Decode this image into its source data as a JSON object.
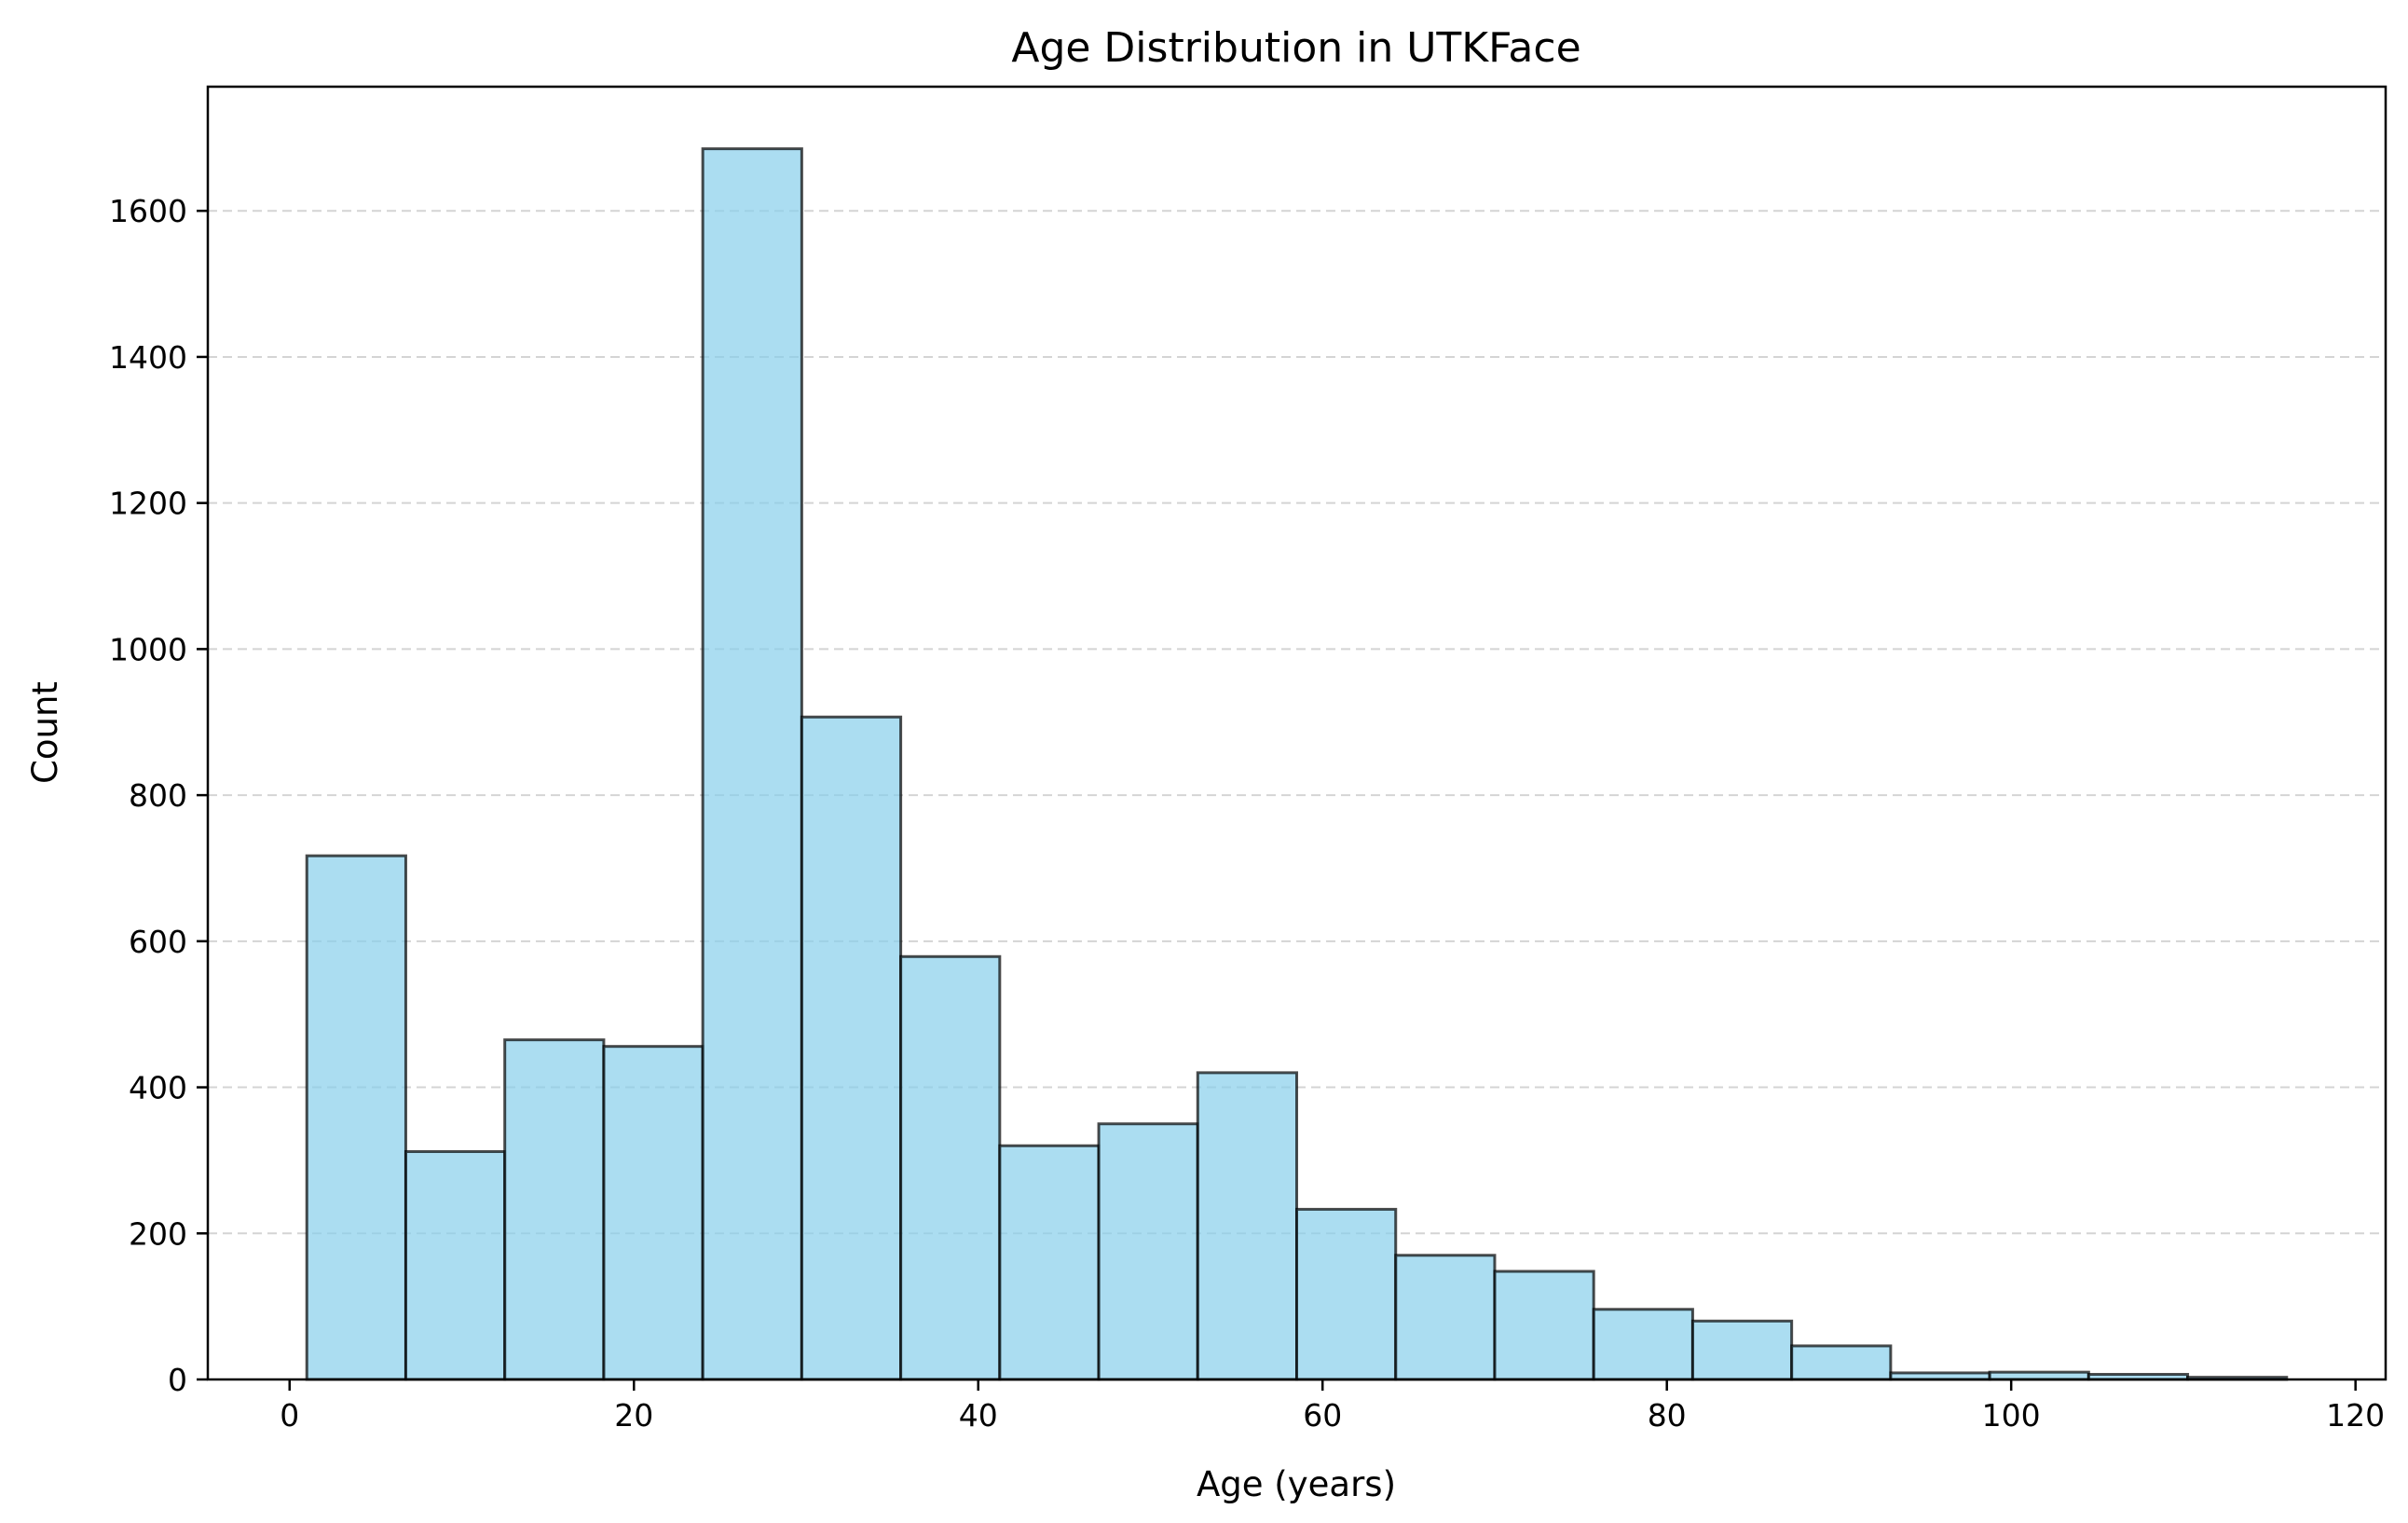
{
  "chart_data": {
    "type": "bar",
    "title": "Age Distribution in UTKFace",
    "xlabel": "Age (years)",
    "ylabel": "Count",
    "xlim": [
      -4.75,
      121.75
    ],
    "ylim": [
      0,
      1770
    ],
    "xticks": [
      0,
      20,
      40,
      60,
      80,
      100,
      120
    ],
    "yticks": [
      0,
      200,
      400,
      600,
      800,
      1000,
      1200,
      1400,
      1600
    ],
    "grid": "y-axis dashed",
    "legend": "none",
    "bin_edges": [
      1,
      6.75,
      12.5,
      18.25,
      24,
      29.75,
      35.5,
      41.25,
      47,
      52.75,
      58.5,
      64.25,
      70,
      75.75,
      81.5,
      87.25,
      93,
      98.75,
      104.5,
      110.25,
      116
    ],
    "values": [
      717,
      312,
      465,
      456,
      1685,
      907,
      579,
      320,
      350,
      420,
      233,
      170,
      148,
      96,
      80,
      46,
      9,
      10,
      7,
      3
    ],
    "colors": {
      "bar_fill": "#87ceeb",
      "bar_fill_opacity": 0.7,
      "bar_edge": "#000000",
      "grid": "#b0b0b0"
    }
  }
}
